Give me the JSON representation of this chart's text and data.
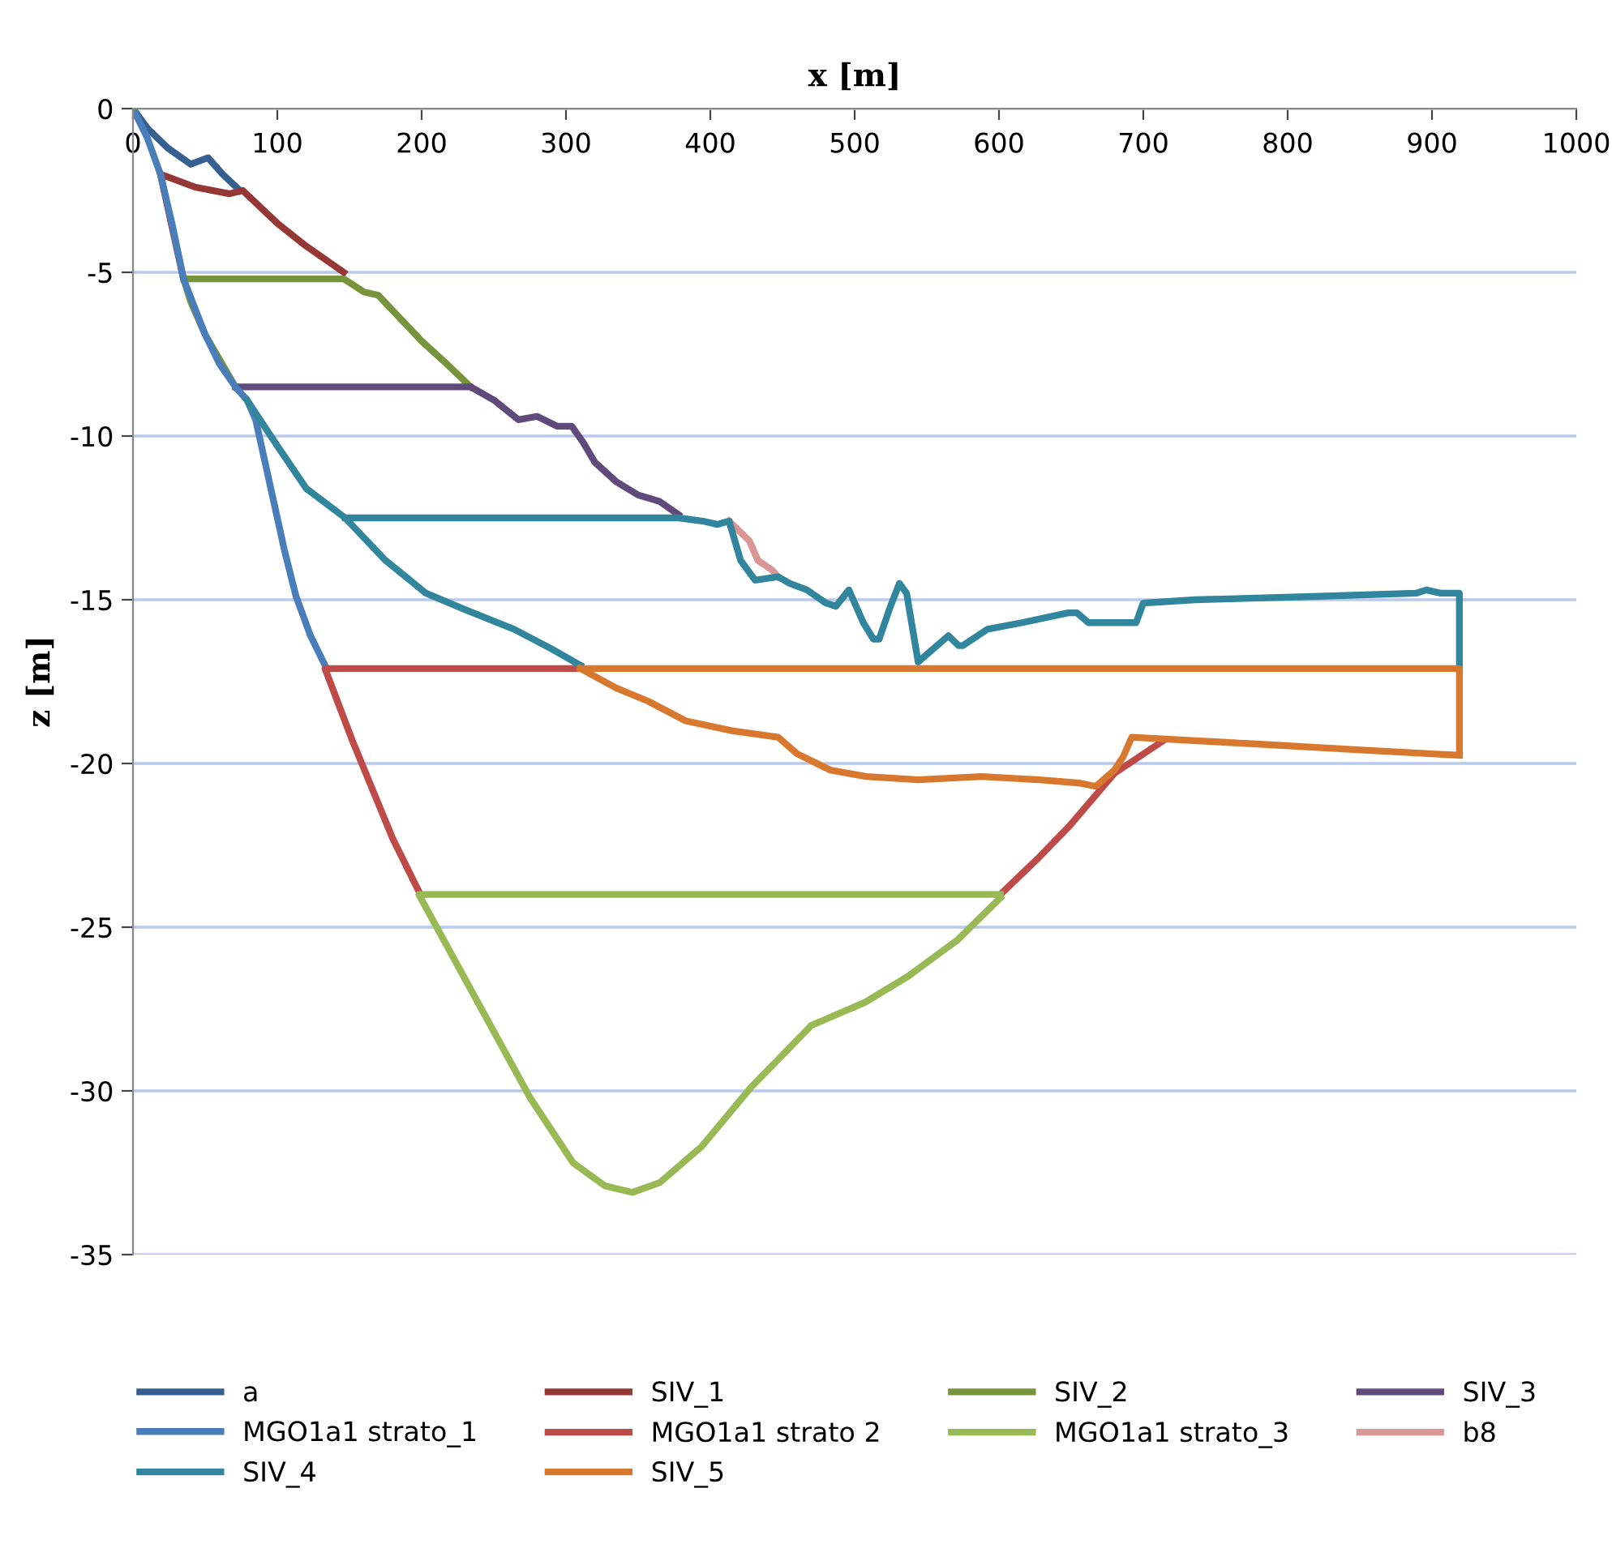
{
  "chart_data": {
    "type": "line",
    "xlabel": "x [m]",
    "ylabel": "z [m]",
    "xlim": [
      0,
      1000
    ],
    "ylim": [
      -35,
      0
    ],
    "xticks": [
      0,
      100,
      200,
      300,
      400,
      500,
      600,
      700,
      800,
      900,
      1000
    ],
    "yticks": [
      0,
      -5,
      -10,
      -15,
      -20,
      -25,
      -30,
      -35
    ],
    "grid": "y",
    "legend": "bottom",
    "series": [
      {
        "name": "a",
        "color": "#376092",
        "x": [
          0,
          10,
          24,
          40,
          52,
          62,
          74
        ],
        "values": [
          0,
          -0.6,
          -1.2,
          -1.7,
          -1.5,
          -2.0,
          -2.5
        ]
      },
      {
        "name": "SIV_1",
        "color": "#953735",
        "x": [
          35,
          19,
          43,
          67,
          76,
          100,
          120,
          146
        ],
        "values": [
          -5.2,
          -2.0,
          -2.4,
          -2.6,
          -2.5,
          -3.5,
          -4.2,
          -5.0
        ]
      },
      {
        "name": "SIV_2",
        "color": "#77933c",
        "x": [
          71,
          50,
          40,
          35,
          146,
          160,
          170,
          185,
          200,
          215,
          234
        ],
        "values": [
          -8.5,
          -6.9,
          -5.9,
          -5.2,
          -5.2,
          -5.6,
          -5.7,
          -6.4,
          -7.1,
          -7.7,
          -8.5
        ]
      },
      {
        "name": "SIV_3",
        "color": "#604a7b",
        "x": [
          71,
          234,
          250,
          267,
          280,
          294,
          304,
          312,
          320,
          335,
          350,
          365,
          378
        ],
        "values": [
          -8.5,
          -8.5,
          -8.9,
          -9.5,
          -9.4,
          -9.7,
          -9.7,
          -10.2,
          -10.8,
          -11.4,
          -11.8,
          -12.0,
          -12.4
        ]
      },
      {
        "name": "MGO1a1 strato_1",
        "color": "#4a7ebb",
        "x": [
          0,
          10,
          19,
          27,
          35,
          50,
          60,
          71,
          79,
          85,
          95,
          105,
          113,
          123,
          133
        ],
        "values": [
          0,
          -0.9,
          -2.0,
          -3.5,
          -5.2,
          -6.9,
          -7.8,
          -8.5,
          -8.9,
          -9.5,
          -11.5,
          -13.5,
          -14.9,
          -16.1,
          -17.0
        ]
      },
      {
        "name": "MGO1a1 strato 2",
        "color": "#be4b48",
        "x": [
          310,
          133,
          152,
          180,
          198,
          null,
          601,
          627,
          649,
          680,
          714
        ],
        "values": [
          -17.1,
          -17.1,
          -19.3,
          -22.3,
          -23.9,
          null,
          -24.0,
          -22.9,
          -21.9,
          -20.3,
          -19.3
        ]
      },
      {
        "name": "MGO1a1 strato_3",
        "color": "#98b954",
        "x": [
          601,
          198,
          234,
          275,
          305,
          327,
          346,
          365,
          394,
          428,
          470,
          507,
          537,
          571,
          601
        ],
        "values": [
          -24.0,
          -24.0,
          -26.9,
          -30.2,
          -32.2,
          -32.9,
          -33.1,
          -32.8,
          -31.7,
          -29.9,
          -28.0,
          -27.3,
          -26.5,
          -25.4,
          -24.1
        ]
      },
      {
        "name": "b8",
        "color": "#d99694",
        "x": [
          413,
          427,
          433,
          443,
          447
        ],
        "values": [
          -12.6,
          -13.2,
          -13.8,
          -14.1,
          -14.3
        ]
      },
      {
        "name": "SIV_4",
        "color": "#31859c",
        "x": [
          79,
          100,
          120,
          147,
          175,
          203,
          230,
          264,
          290,
          310,
          null,
          147,
          378,
          395,
          405,
          413,
          421,
          431,
          447,
          455,
          467,
          480,
          487,
          496,
          506,
          513,
          517,
          524,
          531,
          536,
          544,
          557,
          565,
          572,
          575,
          592,
          616,
          648,
          654,
          662,
          695,
          700,
          736,
          817,
          889,
          896,
          906,
          919,
          919
        ],
        "values": [
          -8.9,
          -10.3,
          -11.6,
          -12.5,
          -13.8,
          -14.8,
          -15.3,
          -15.9,
          -16.5,
          -17.0,
          null,
          -12.5,
          -12.5,
          -12.6,
          -12.7,
          -12.6,
          -13.8,
          -14.4,
          -14.3,
          -14.5,
          -14.7,
          -15.1,
          -15.2,
          -14.7,
          -15.7,
          -16.2,
          -16.2,
          -15.3,
          -14.5,
          -14.8,
          -16.9,
          -16.4,
          -16.1,
          -16.4,
          -16.4,
          -15.9,
          -15.7,
          -15.4,
          -15.4,
          -15.7,
          -15.7,
          -15.1,
          -15.0,
          -14.9,
          -14.8,
          -14.7,
          -14.8,
          -14.8,
          -17.1
        ]
      },
      {
        "name": "SIV_5",
        "color": "#d8782f",
        "x": [
          310,
          919,
          919,
          null,
          310,
          335,
          357,
          383,
          415,
          447,
          460,
          483,
          508,
          544,
          588,
          628,
          656,
          667,
          680,
          686,
          692,
          776,
          856,
          919
        ],
        "values": [
          -17.1,
          -17.1,
          -19.75,
          null,
          -17.1,
          -17.7,
          -18.1,
          -18.7,
          -19.0,
          -19.2,
          -19.7,
          -20.2,
          -20.4,
          -20.5,
          -20.4,
          -20.5,
          -20.6,
          -20.7,
          -20.2,
          -19.8,
          -19.2,
          -19.4,
          -19.6,
          -19.75
        ]
      }
    ]
  }
}
